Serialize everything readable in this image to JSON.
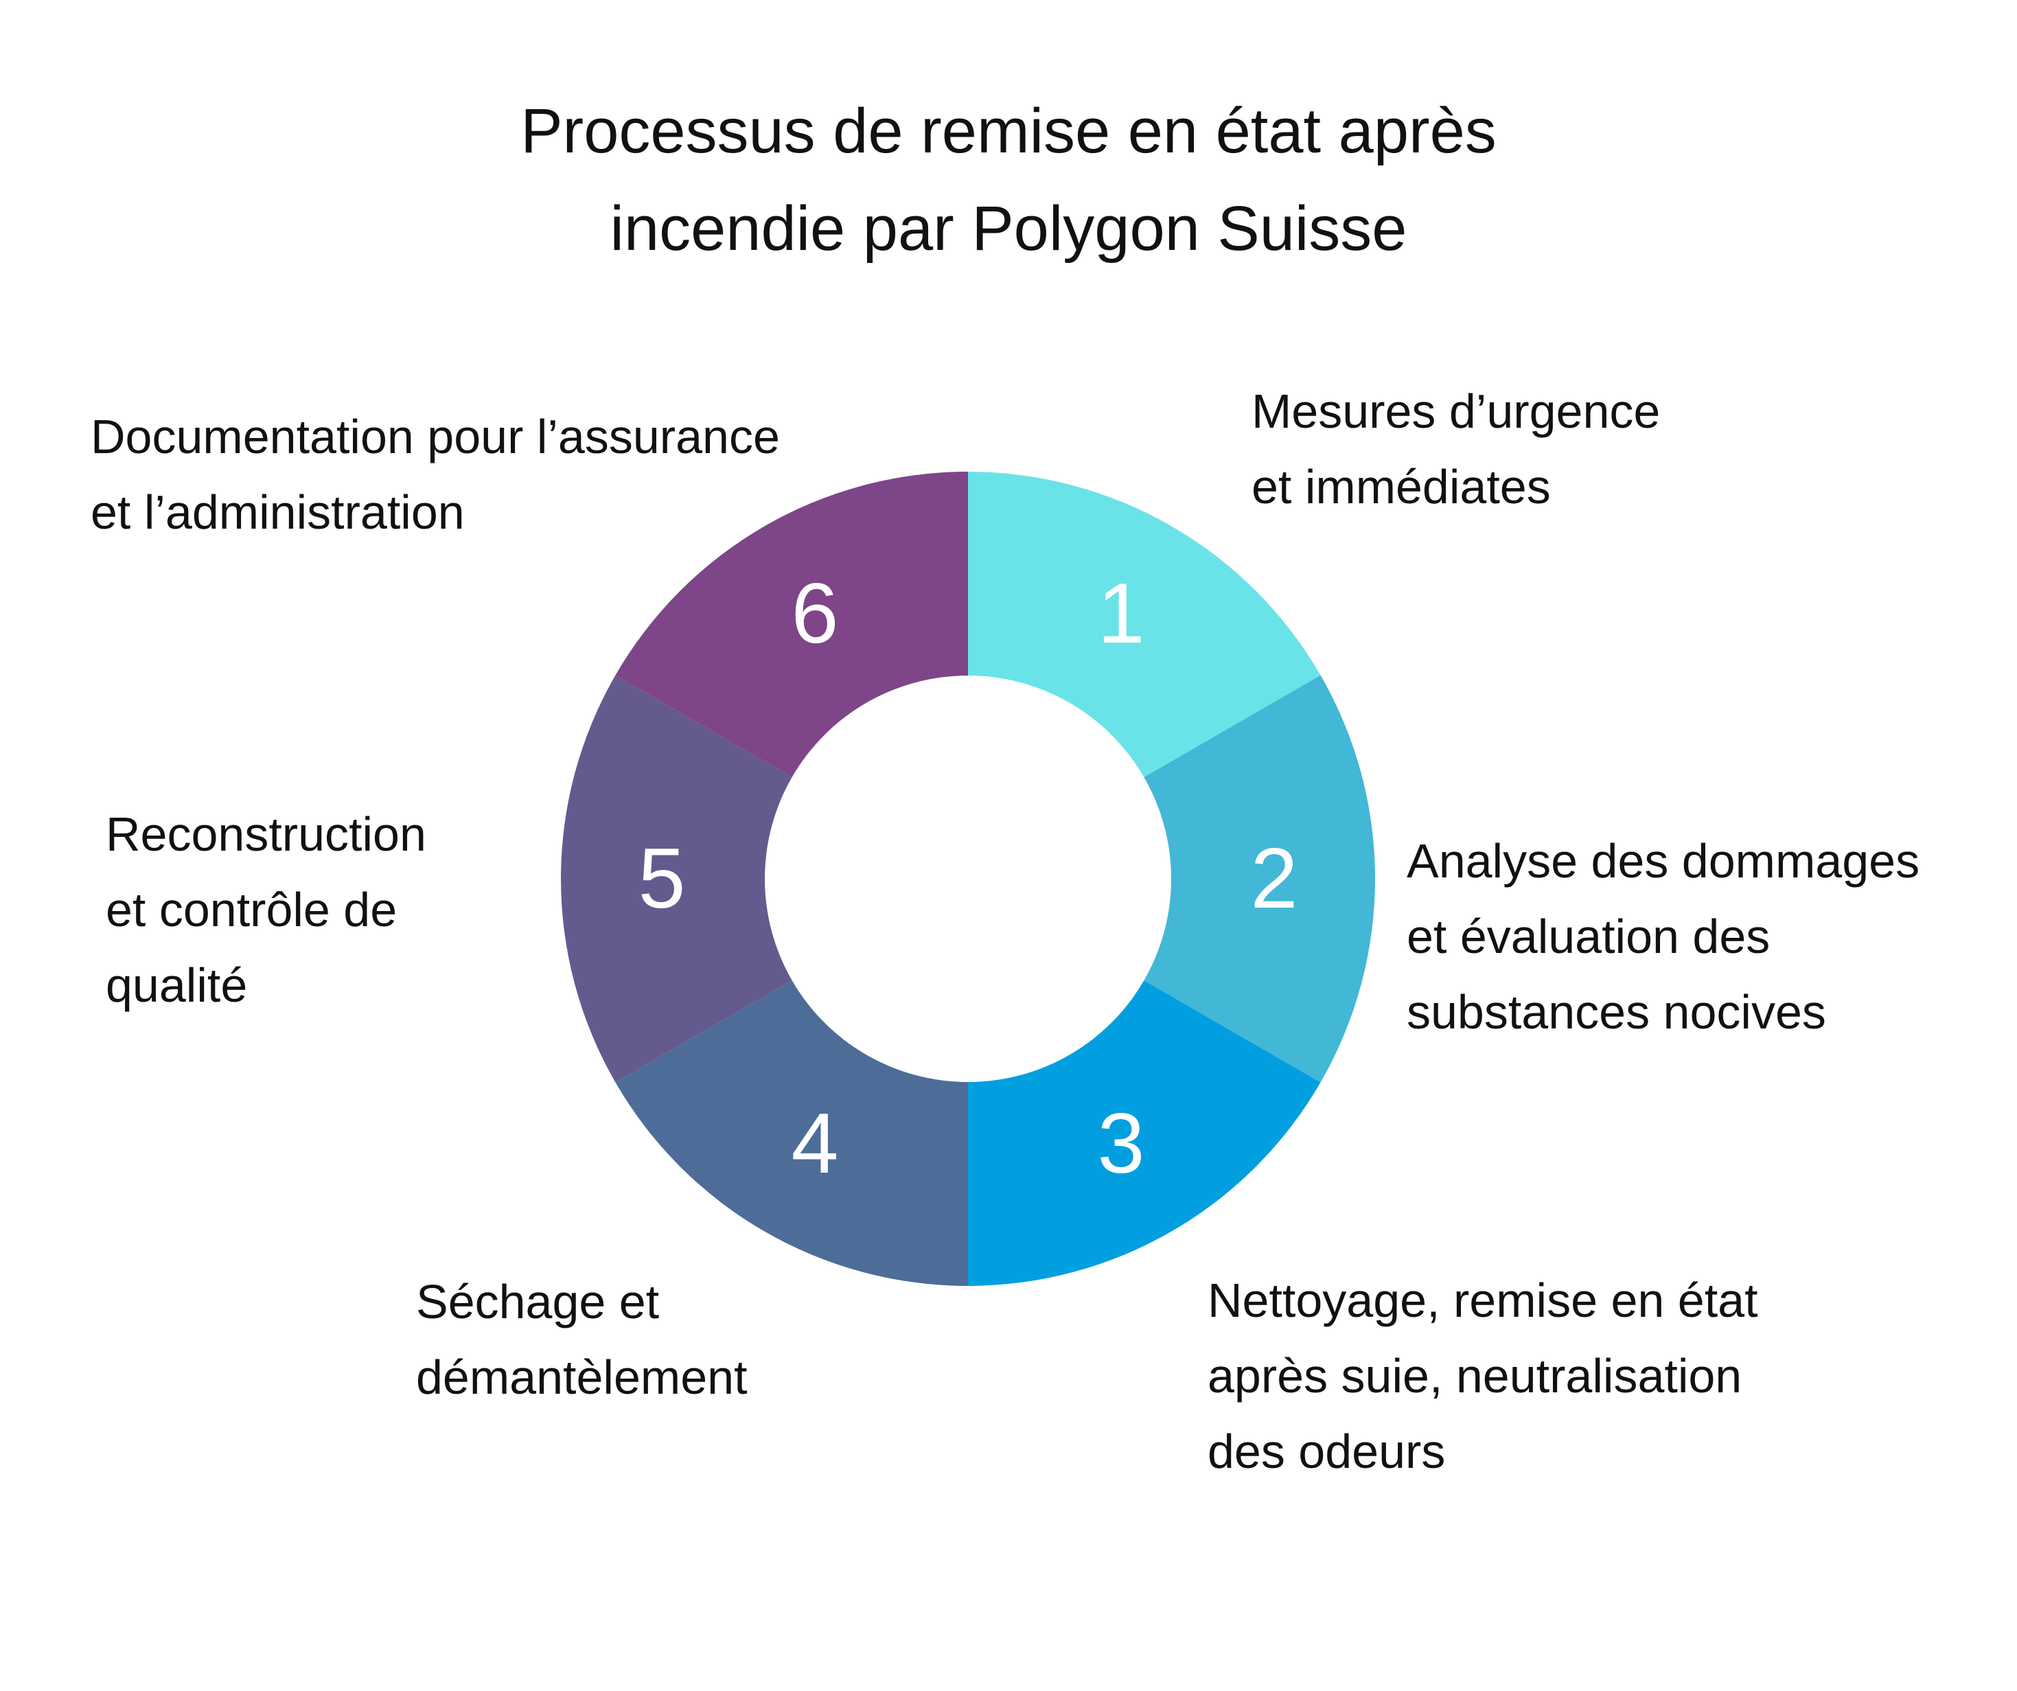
{
  "title": [
    "Processus de remise en état après",
    "incendie par Polygon Suisse"
  ],
  "steps": [
    {
      "number": "1",
      "color": "#6ae3e8",
      "label": [
        "Mesures d’urgence",
        "et immédiates"
      ]
    },
    {
      "number": "2",
      "color": "#43b7d6",
      "label": [
        "Analyse des dommages",
        "et évaluation des",
        "substances nocives"
      ]
    },
    {
      "number": "3",
      "color": "#029fe0",
      "label": [
        "Nettoyage, remise en état",
        "après suie, neutralisation",
        "des odeurs"
      ]
    },
    {
      "number": "4",
      "color": "#4d6d98",
      "label": [
        "Séchage et",
        "démantèlement"
      ]
    },
    {
      "number": "5",
      "color": "#645a8e",
      "label": [
        "Reconstruction",
        "et contrôle de",
        "qualité"
      ]
    },
    {
      "number": "6",
      "color": "#7e4588",
      "label": [
        "Documentation pour l’assurance",
        "et l’administration"
      ]
    }
  ]
}
